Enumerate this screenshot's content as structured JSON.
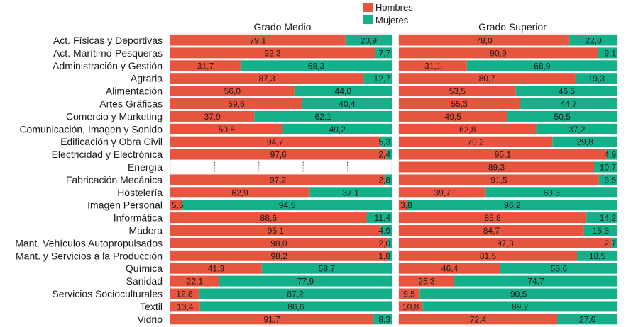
{
  "legend": [
    {
      "label": "Hombres",
      "color": "#e8553f"
    },
    {
      "label": "Mujeres",
      "color": "#14b08a"
    }
  ],
  "chart_data": {
    "type": "bar",
    "stacked": true,
    "orientation": "horizontal",
    "percent": true,
    "categories": [
      "Act. Físicas y Deportivas",
      "Act. Marítimo-Pesqueras",
      "Administración y Gestión",
      "Agraria",
      "Alimentación",
      "Artes Gráficas",
      "Comercio y Marketing",
      "Comunicación, Imagen y Sonido",
      "Edificación y Obra Civil",
      "Electricidad y Electrónica",
      "Energía",
      "Fabricación Mecánica",
      "Hostelería",
      "Imagen Personal",
      "Informática",
      "Madera",
      "Mant. Vehículos Autopropulsados",
      "Mant. y Servicios a la Producción",
      "Química",
      "Sanidad",
      "Servicios Socioculturales",
      "Textil",
      "Vidrio"
    ],
    "panels": [
      {
        "title": "Grado Medio",
        "series": [
          {
            "name": "Hombres",
            "values": [
              "79,1",
              "92,3",
              "31,7",
              "87,3",
              "56,0",
              "59,6",
              "37,9",
              "50,8",
              "94,7",
              "97,6",
              null,
              "97,2",
              "62,9",
              "5,5",
              "88,6",
              "95,1",
              "98,0",
              "98,2",
              "41,3",
              "22,1",
              "12,8",
              "13,4",
              "91,7"
            ]
          },
          {
            "name": "Mujeres",
            "values": [
              "20,9",
              "7,7",
              "68,3",
              "12,7",
              "44,0",
              "40,4",
              "62,1",
              "49,2",
              "5,3",
              "2,4",
              null,
              "2,8",
              "37,1",
              "94,5",
              "11,4",
              "4,9",
              "2,0",
              "1,8",
              "58,7",
              "77,9",
              "87,2",
              "86,6",
              "8,3"
            ]
          }
        ]
      },
      {
        "title": "Grado Superior",
        "series": [
          {
            "name": "Hombres",
            "values": [
              "78,0",
              "90,9",
              "31,1",
              "80,7",
              "53,5",
              "55,3",
              "49,5",
              "62,8",
              "70,2",
              "95,1",
              "89,3",
              "91,5",
              "39,7",
              "3,8",
              "85,8",
              "84,7",
              "97,3",
              "81,5",
              "46,4",
              "25,3",
              "9,5",
              "10,8",
              "72,4"
            ]
          },
          {
            "name": "Mujeres",
            "values": [
              "22,0",
              "9,1",
              "68,9",
              "19,3",
              "46,5",
              "44,7",
              "50,5",
              "37,2",
              "29,8",
              "4,9",
              "10,7",
              "8,5",
              "60,3",
              "96,2",
              "14,2",
              "15,3",
              "2,7",
              "18,5",
              "53,6",
              "74,7",
              "90,5",
              "89,2",
              "27,6"
            ]
          }
        ]
      }
    ],
    "xlim": [
      0,
      100
    ]
  }
}
